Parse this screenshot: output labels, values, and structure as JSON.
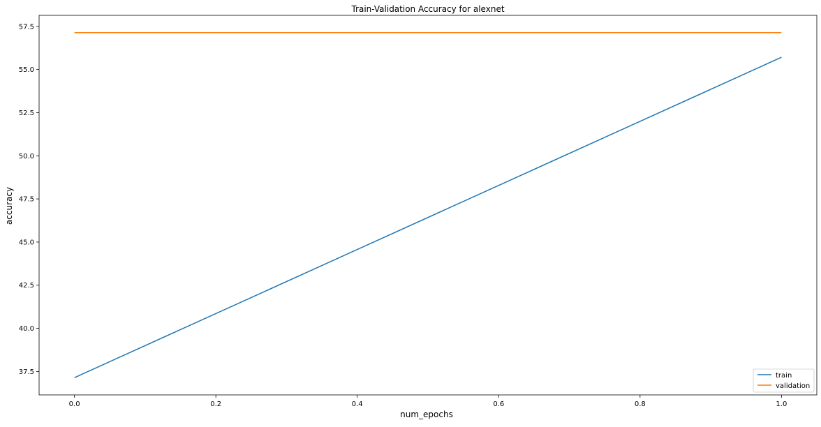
{
  "chart_data": {
    "type": "line",
    "title": "Train-Validation Accuracy for alexnet",
    "xlabel": "num_epochs",
    "ylabel": "accuracy",
    "x": [
      0,
      1
    ],
    "series": [
      {
        "name": "train",
        "values": [
          37.14,
          55.71
        ],
        "color": "#1f77b4"
      },
      {
        "name": "validation",
        "values": [
          57.14,
          57.14
        ],
        "color": "#ff7f0e"
      }
    ],
    "xlim": [
      -0.05,
      1.05
    ],
    "ylim": [
      36.14,
      58.14
    ],
    "xticks": [
      "0.0",
      "0.2",
      "0.4",
      "0.6",
      "0.8",
      "1.0"
    ],
    "yticks": [
      "37.5",
      "40.0",
      "42.5",
      "45.0",
      "47.5",
      "50.0",
      "52.5",
      "55.0",
      "57.5"
    ],
    "grid": false,
    "legend_position": "lower right"
  }
}
